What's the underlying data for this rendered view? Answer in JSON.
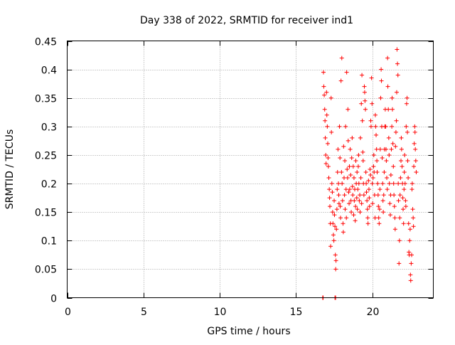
{
  "colors": {
    "series": "#ff0000",
    "grid": "#a0a0a0",
    "frame": "#000000"
  },
  "chart_data": {
    "type": "scatter",
    "title": "Day 338 of 2022, SRMTID for receiver ind1",
    "xlabel": "GPS time / hours",
    "ylabel": "SRMTID / TECUs",
    "xlim": [
      0,
      24
    ],
    "ylim": [
      0,
      0.45
    ],
    "grid": true,
    "legend": "none",
    "marker": "plus",
    "x_ticks": [
      0,
      5,
      10,
      15,
      20
    ],
    "x_tick_labels": [
      "0",
      "5",
      "10",
      "15",
      "20"
    ],
    "y_ticks": [
      0,
      0.05,
      0.1,
      0.15,
      0.2,
      0.25,
      0.3,
      0.35,
      0.4,
      0.45
    ],
    "y_tick_labels": [
      "0",
      "0.05",
      "0.1",
      "0.15",
      "0.2",
      "0.25",
      "0.3",
      "0.35",
      "0.4",
      "0.45"
    ],
    "series": [
      {
        "points": [
          [
            16.75,
            0.0
          ],
          [
            16.78,
            0.0
          ],
          [
            17.55,
            0.0
          ],
          [
            17.6,
            0.0
          ],
          [
            16.8,
            0.395
          ],
          [
            16.82,
            0.37
          ],
          [
            16.85,
            0.355
          ],
          [
            16.88,
            0.33
          ],
          [
            16.9,
            0.31
          ],
          [
            16.92,
            0.28
          ],
          [
            16.95,
            0.25
          ],
          [
            16.97,
            0.235
          ],
          [
            17.0,
            0.36
          ],
          [
            17.02,
            0.32
          ],
          [
            17.05,
            0.3
          ],
          [
            17.08,
            0.27
          ],
          [
            17.1,
            0.245
          ],
          [
            17.12,
            0.23
          ],
          [
            17.15,
            0.21
          ],
          [
            17.18,
            0.19
          ],
          [
            17.2,
            0.175
          ],
          [
            17.22,
            0.16
          ],
          [
            17.25,
            0.13
          ],
          [
            17.27,
            0.09
          ],
          [
            17.3,
            0.35
          ],
          [
            17.32,
            0.29
          ],
          [
            17.35,
            0.2
          ],
          [
            17.38,
            0.185
          ],
          [
            17.4,
            0.15
          ],
          [
            17.42,
            0.13
          ],
          [
            17.45,
            0.11
          ],
          [
            17.48,
            0.1
          ],
          [
            17.5,
            0.17
          ],
          [
            17.52,
            0.145
          ],
          [
            17.55,
            0.125
          ],
          [
            17.58,
            0.075
          ],
          [
            17.6,
            0.05
          ],
          [
            17.62,
            0.065
          ],
          [
            17.65,
            0.12
          ],
          [
            17.68,
            0.155
          ],
          [
            17.7,
            0.19
          ],
          [
            17.72,
            0.22
          ],
          [
            17.75,
            0.26
          ],
          [
            17.78,
            0.2
          ],
          [
            17.8,
            0.18
          ],
          [
            17.82,
            0.165
          ],
          [
            17.85,
            0.3
          ],
          [
            17.88,
            0.245
          ],
          [
            17.9,
            0.16
          ],
          [
            17.92,
            0.14
          ],
          [
            17.95,
            0.38
          ],
          [
            17.98,
            0.22
          ],
          [
            18.0,
            0.42
          ],
          [
            18.02,
            0.2
          ],
          [
            18.05,
            0.17
          ],
          [
            18.08,
            0.13
          ],
          [
            18.1,
            0.115
          ],
          [
            18.12,
            0.265
          ],
          [
            18.15,
            0.21
          ],
          [
            18.18,
            0.18
          ],
          [
            18.2,
            0.24
          ],
          [
            18.22,
            0.155
          ],
          [
            18.25,
            0.3
          ],
          [
            18.28,
            0.19
          ],
          [
            18.3,
            0.14
          ],
          [
            18.32,
            0.395
          ],
          [
            18.35,
            0.225
          ],
          [
            18.38,
            0.21
          ],
          [
            18.4,
            0.33
          ],
          [
            18.42,
            0.275
          ],
          [
            18.45,
            0.185
          ],
          [
            18.48,
            0.165
          ],
          [
            18.5,
            0.23
          ],
          [
            18.52,
            0.19
          ],
          [
            18.55,
            0.26
          ],
          [
            18.58,
            0.215
          ],
          [
            18.6,
            0.17
          ],
          [
            18.62,
            0.15
          ],
          [
            18.65,
            0.245
          ],
          [
            18.68,
            0.28
          ],
          [
            18.7,
            0.195
          ],
          [
            18.72,
            0.18
          ],
          [
            18.75,
            0.23
          ],
          [
            18.78,
            0.145
          ],
          [
            18.8,
            0.21
          ],
          [
            18.82,
            0.17
          ],
          [
            18.85,
            0.19
          ],
          [
            18.88,
            0.135
          ],
          [
            18.9,
            0.16
          ],
          [
            18.92,
            0.24
          ],
          [
            18.95,
            0.2
          ],
          [
            18.98,
            0.175
          ],
          [
            19.0,
            0.22
          ],
          [
            19.02,
            0.155
          ],
          [
            19.05,
            0.19
          ],
          [
            19.08,
            0.23
          ],
          [
            19.1,
            0.25
          ],
          [
            19.12,
            0.2
          ],
          [
            19.15,
            0.17
          ],
          [
            19.18,
            0.18
          ],
          [
            19.2,
            0.15
          ],
          [
            19.22,
            0.28
          ],
          [
            19.25,
            0.21
          ],
          [
            19.28,
            0.34
          ],
          [
            19.3,
            0.165
          ],
          [
            19.32,
            0.39
          ],
          [
            19.35,
            0.31
          ],
          [
            19.38,
            0.255
          ],
          [
            19.4,
            0.24
          ],
          [
            19.42,
            0.2
          ],
          [
            19.45,
            0.18
          ],
          [
            19.48,
            0.37
          ],
          [
            19.5,
            0.36
          ],
          [
            19.52,
            0.345
          ],
          [
            19.55,
            0.33
          ],
          [
            19.58,
            0.22
          ],
          [
            19.6,
            0.2
          ],
          [
            19.62,
            0.185
          ],
          [
            19.65,
            0.17
          ],
          [
            19.68,
            0.155
          ],
          [
            19.7,
            0.14
          ],
          [
            19.72,
            0.13
          ],
          [
            19.75,
            0.205
          ],
          [
            19.78,
            0.19
          ],
          [
            19.8,
            0.175
          ],
          [
            19.82,
            0.16
          ],
          [
            19.85,
            0.225
          ],
          [
            19.88,
            0.215
          ],
          [
            19.9,
            0.31
          ],
          [
            19.92,
            0.3
          ],
          [
            19.95,
            0.385
          ],
          [
            19.98,
            0.34
          ],
          [
            20.0,
            0.2
          ],
          [
            20.02,
            0.165
          ],
          [
            20.05,
            0.21
          ],
          [
            20.08,
            0.23
          ],
          [
            20.1,
            0.25
          ],
          [
            20.12,
            0.22
          ],
          [
            20.15,
            0.18
          ],
          [
            20.18,
            0.14
          ],
          [
            20.2,
            0.32
          ],
          [
            20.22,
            0.3
          ],
          [
            20.25,
            0.285
          ],
          [
            20.28,
            0.26
          ],
          [
            20.3,
            0.24
          ],
          [
            20.32,
            0.22
          ],
          [
            20.35,
            0.2
          ],
          [
            20.38,
            0.18
          ],
          [
            20.4,
            0.16
          ],
          [
            20.42,
            0.14
          ],
          [
            20.45,
            0.13
          ],
          [
            20.48,
            0.155
          ],
          [
            20.5,
            0.19
          ],
          [
            20.52,
            0.26
          ],
          [
            20.55,
            0.35
          ],
          [
            20.58,
            0.4
          ],
          [
            20.6,
            0.38
          ],
          [
            20.62,
            0.3
          ],
          [
            20.65,
            0.245
          ],
          [
            20.68,
            0.2
          ],
          [
            20.7,
            0.17
          ],
          [
            20.72,
            0.15
          ],
          [
            20.75,
            0.18
          ],
          [
            20.78,
            0.22
          ],
          [
            20.8,
            0.26
          ],
          [
            20.82,
            0.3
          ],
          [
            20.85,
            0.33
          ],
          [
            20.88,
            0.3
          ],
          [
            20.9,
            0.26
          ],
          [
            20.92,
            0.24
          ],
          [
            20.95,
            0.21
          ],
          [
            20.98,
            0.19
          ],
          [
            21.0,
            0.42
          ],
          [
            21.02,
            0.37
          ],
          [
            21.05,
            0.33
          ],
          [
            21.08,
            0.28
          ],
          [
            21.1,
            0.25
          ],
          [
            21.12,
            0.2
          ],
          [
            21.15,
            0.165
          ],
          [
            21.18,
            0.145
          ],
          [
            21.2,
            0.18
          ],
          [
            21.22,
            0.215
          ],
          [
            21.25,
            0.26
          ],
          [
            21.28,
            0.3
          ],
          [
            21.3,
            0.35
          ],
          [
            21.32,
            0.33
          ],
          [
            21.35,
            0.27
          ],
          [
            21.38,
            0.23
          ],
          [
            21.4,
            0.2
          ],
          [
            21.42,
            0.18
          ],
          [
            21.45,
            0.16
          ],
          [
            21.48,
            0.14
          ],
          [
            21.5,
            0.12
          ],
          [
            21.52,
            0.265
          ],
          [
            21.55,
            0.29
          ],
          [
            21.58,
            0.31
          ],
          [
            21.6,
            0.36
          ],
          [
            21.62,
            0.435
          ],
          [
            21.65,
            0.41
          ],
          [
            21.68,
            0.39
          ],
          [
            21.7,
            0.2
          ],
          [
            21.72,
            0.17
          ],
          [
            21.75,
            0.06
          ],
          [
            21.78,
            0.1
          ],
          [
            21.8,
            0.14
          ],
          [
            21.82,
            0.18
          ],
          [
            21.85,
            0.21
          ],
          [
            21.88,
            0.24
          ],
          [
            21.9,
            0.28
          ],
          [
            21.92,
            0.26
          ],
          [
            21.95,
            0.23
          ],
          [
            21.98,
            0.2
          ],
          [
            22.0,
            0.175
          ],
          [
            22.02,
            0.155
          ],
          [
            22.05,
            0.13
          ],
          [
            22.08,
            0.19
          ],
          [
            22.1,
            0.22
          ],
          [
            22.12,
            0.25
          ],
          [
            22.15,
            0.2
          ],
          [
            22.18,
            0.17
          ],
          [
            22.2,
            0.16
          ],
          [
            22.22,
            0.3
          ],
          [
            22.25,
            0.34
          ],
          [
            22.28,
            0.35
          ],
          [
            22.3,
            0.29
          ],
          [
            22.32,
            0.24
          ],
          [
            22.35,
            0.21
          ],
          [
            22.38,
            0.13
          ],
          [
            22.4,
            0.08
          ],
          [
            22.42,
            0.075
          ],
          [
            22.45,
            0.1
          ],
          [
            22.48,
            0.12
          ],
          [
            22.5,
            0.04
          ],
          [
            22.52,
            0.03
          ],
          [
            22.55,
            0.06
          ],
          [
            22.58,
            0.075
          ],
          [
            22.6,
            0.19
          ],
          [
            22.62,
            0.2
          ],
          [
            22.65,
            0.155
          ],
          [
            22.68,
            0.14
          ],
          [
            22.7,
            0.125
          ],
          [
            22.72,
            0.23
          ],
          [
            22.75,
            0.27
          ],
          [
            22.78,
            0.3
          ],
          [
            22.8,
            0.29
          ],
          [
            22.82,
            0.26
          ],
          [
            22.85,
            0.24
          ],
          [
            22.88,
            0.22
          ]
        ]
      }
    ]
  }
}
